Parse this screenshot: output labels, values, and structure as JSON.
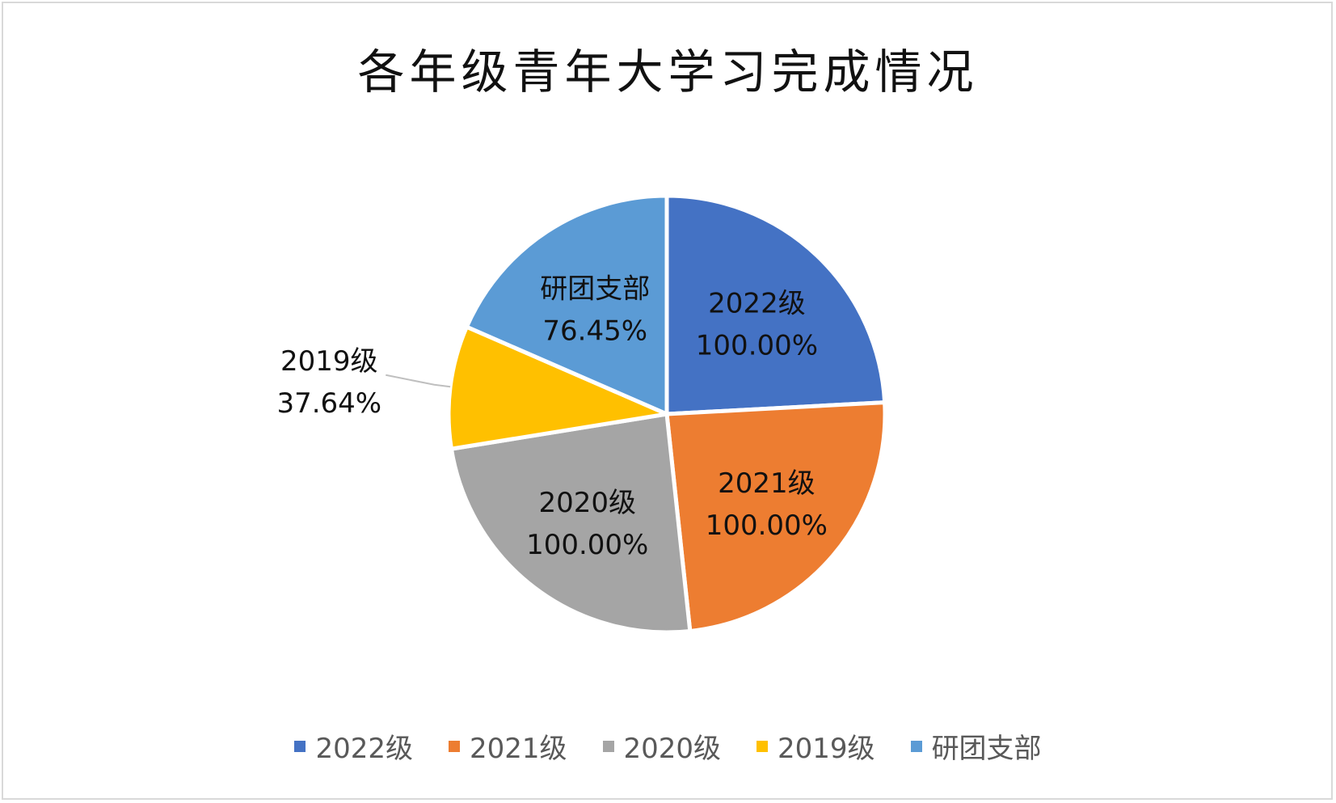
{
  "chart_data": {
    "type": "pie",
    "title": "各年级青年大学习完成情况",
    "categories": [
      "2022级",
      "2021级",
      "2020级",
      "2019级",
      "研团支部"
    ],
    "values": [
      100.0,
      100.0,
      100.0,
      37.64,
      76.45
    ],
    "data_labels": [
      "100.00%",
      "100.00%",
      "100.00%",
      "37.64%",
      "76.45%"
    ],
    "colors": [
      "#4472C4",
      "#ED7D31",
      "#A5A5A5",
      "#FFC000",
      "#5B9BD5"
    ],
    "legend_position": "bottom"
  }
}
